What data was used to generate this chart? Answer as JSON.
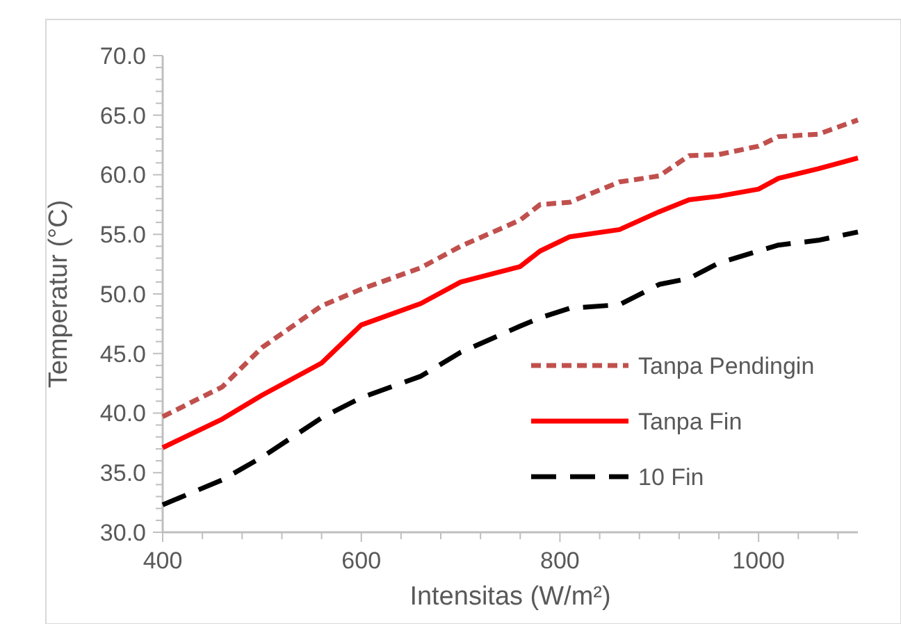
{
  "chart_data": {
    "type": "line",
    "xlabel": "Intensitas (W/m²)",
    "ylabel": "Temperatur (°C)",
    "x": [
      400,
      460,
      500,
      560,
      600,
      660,
      700,
      760,
      780,
      810,
      860,
      900,
      930,
      960,
      1000,
      1020,
      1060,
      1100
    ],
    "series": [
      {
        "name": "Tanpa Pendingin",
        "color": "#c0504d",
        "line_style": "dotted",
        "values": [
          39.7,
          42.2,
          45.5,
          49.0,
          50.4,
          52.2,
          54.0,
          56.2,
          57.5,
          57.7,
          59.4,
          59.9,
          61.6,
          61.7,
          62.4,
          63.2,
          63.4,
          64.6
        ]
      },
      {
        "name": "Tanpa Fin",
        "color": "#ff0000",
        "line_style": "solid",
        "values": [
          37.1,
          39.5,
          41.5,
          44.2,
          47.4,
          49.2,
          51.0,
          52.3,
          53.6,
          54.8,
          55.4,
          56.9,
          57.9,
          58.2,
          58.8,
          59.7,
          60.5,
          61.4
        ]
      },
      {
        "name": "10 Fin",
        "color": "#000000",
        "line_style": "dashed",
        "values": [
          32.3,
          34.4,
          36.3,
          39.6,
          41.3,
          43.1,
          45.1,
          47.3,
          48.0,
          48.8,
          49.1,
          50.8,
          51.3,
          52.6,
          53.6,
          54.1,
          54.5,
          55.2
        ]
      }
    ],
    "xlim": [
      400,
      1100
    ],
    "xticks": [
      400,
      {
        "value": 440,
        "label": null
      },
      {
        "value": 480,
        "label": null
      },
      {
        "value": 520,
        "label": null
      },
      {
        "value": 560,
        "label": null
      },
      600,
      {
        "value": 640,
        "label": null
      },
      {
        "value": 680,
        "label": null
      },
      {
        "value": 720,
        "label": null
      },
      {
        "value": 760,
        "label": null
      },
      800,
      {
        "value": 840,
        "label": null
      },
      {
        "value": 880,
        "label": null
      },
      {
        "value": 920,
        "label": null
      },
      {
        "value": 960,
        "label": null
      },
      1000,
      {
        "value": 1040,
        "label": null
      },
      {
        "value": 1080,
        "label": null
      }
    ],
    "ylim": [
      30,
      70
    ],
    "yticks": [
      {
        "value": 30,
        "label": "30.0"
      },
      {
        "value": 31,
        "label": null
      },
      {
        "value": 32,
        "label": null
      },
      {
        "value": 33,
        "label": null
      },
      {
        "value": 34,
        "label": null
      },
      {
        "value": 35,
        "label": "35.0"
      },
      {
        "value": 36,
        "label": null
      },
      {
        "value": 37,
        "label": null
      },
      {
        "value": 38,
        "label": null
      },
      {
        "value": 39,
        "label": null
      },
      {
        "value": 40,
        "label": "40.0"
      },
      {
        "value": 41,
        "label": null
      },
      {
        "value": 42,
        "label": null
      },
      {
        "value": 43,
        "label": null
      },
      {
        "value": 44,
        "label": null
      },
      {
        "value": 45,
        "label": "45.0"
      },
      {
        "value": 46,
        "label": null
      },
      {
        "value": 47,
        "label": null
      },
      {
        "value": 48,
        "label": null
      },
      {
        "value": 49,
        "label": null
      },
      {
        "value": 50,
        "label": "50.0"
      },
      {
        "value": 51,
        "label": null
      },
      {
        "value": 52,
        "label": null
      },
      {
        "value": 53,
        "label": null
      },
      {
        "value": 54,
        "label": null
      },
      {
        "value": 55,
        "label": "55.0"
      },
      {
        "value": 56,
        "label": null
      },
      {
        "value": 57,
        "label": null
      },
      {
        "value": 58,
        "label": null
      },
      {
        "value": 59,
        "label": null
      },
      {
        "value": 60,
        "label": "60.0"
      },
      {
        "value": 61,
        "label": null
      },
      {
        "value": 62,
        "label": null
      },
      {
        "value": 63,
        "label": null
      },
      {
        "value": 64,
        "label": null
      },
      {
        "value": 65,
        "label": "65.0"
      },
      {
        "value": 66,
        "label": null
      },
      {
        "value": 67,
        "label": null
      },
      {
        "value": 68,
        "label": null
      },
      {
        "value": 69,
        "label": null
      },
      {
        "value": 70,
        "label": "70.0"
      }
    ],
    "grid": false,
    "legend": "bottom right",
    "marker": "none"
  }
}
